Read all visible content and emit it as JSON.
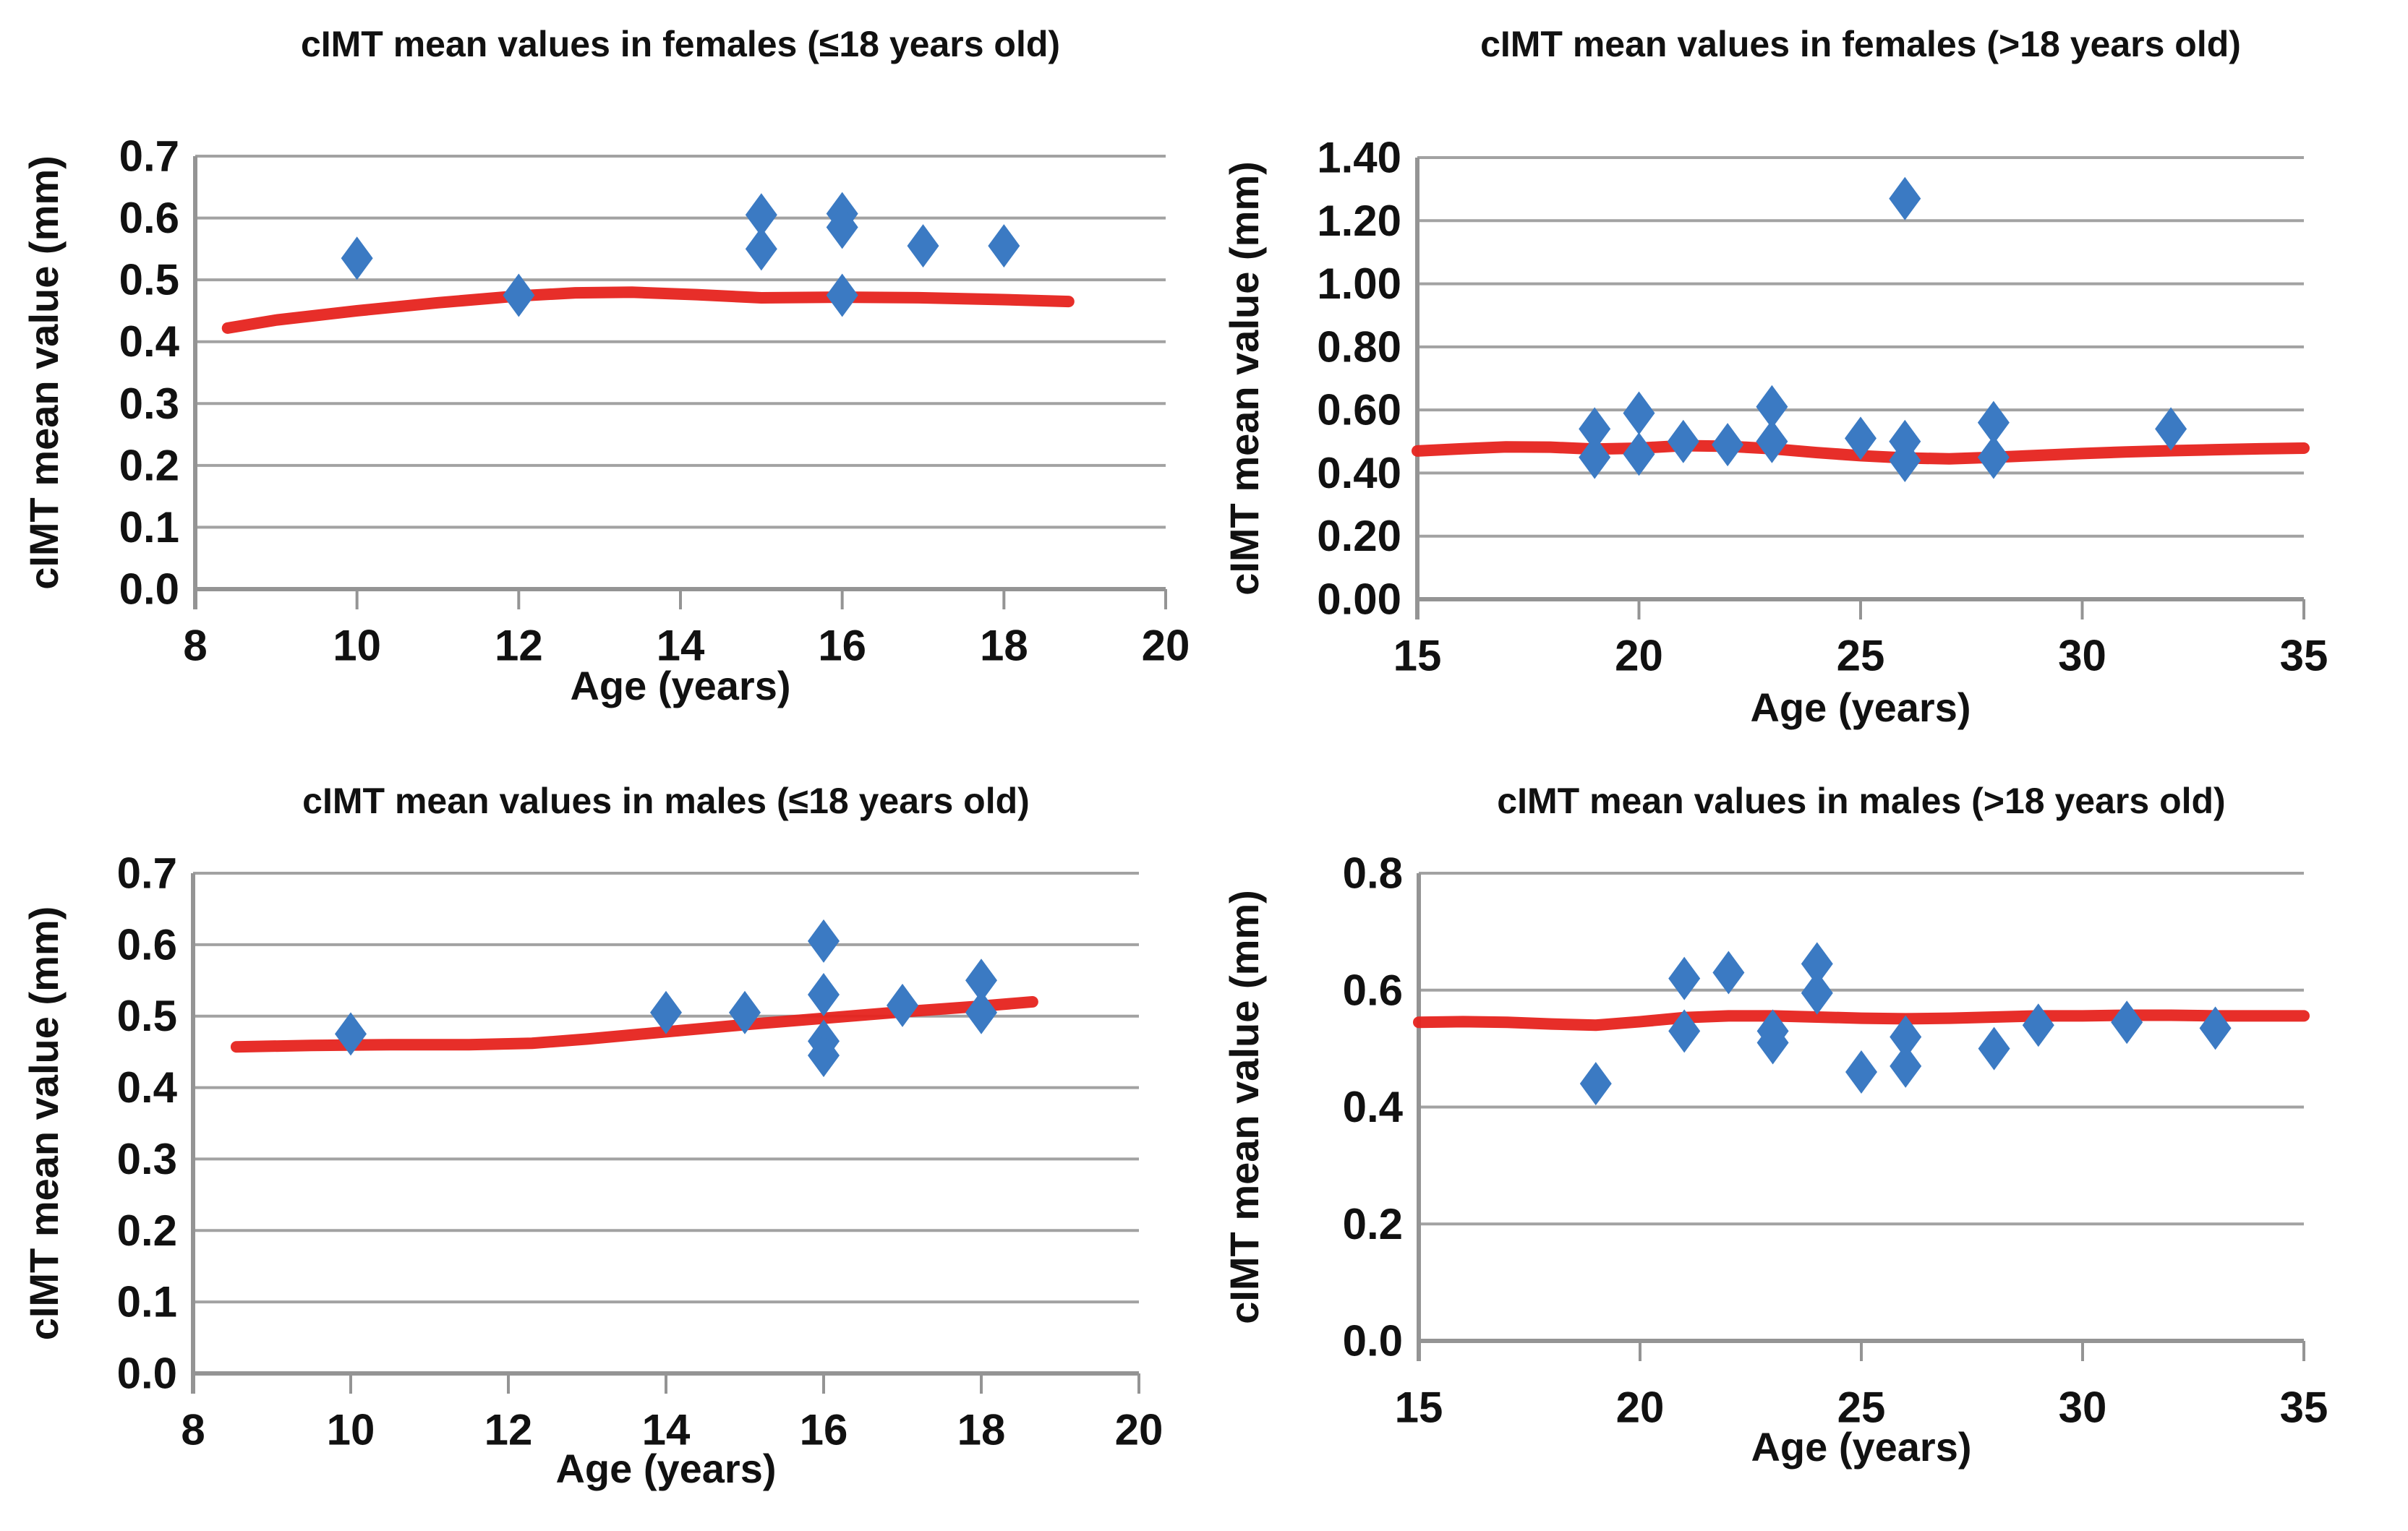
{
  "figure": {
    "background": "#ffffff",
    "description": "Four scatter plots of cIMT mean values versus age, by sex and age group, each with a red trend line"
  },
  "colors": {
    "marker": "#3b7ac3",
    "trend_line": "#e6231e",
    "gridline": "#a2a2a2",
    "axis": "#949494",
    "text": "#111111"
  },
  "chart_data": [
    {
      "type": "scatter",
      "title": "cIMT mean values in females (≤18 years old)",
      "xlabel": "Age (years)",
      "ylabel": "cIMT mean value (mm)",
      "xlim": [
        8,
        20
      ],
      "xticks": [
        8,
        10,
        12,
        14,
        16,
        18,
        20
      ],
      "ylim": [
        0,
        0.7
      ],
      "yticks": [
        0,
        0.1,
        0.2,
        0.3,
        0.4,
        0.5,
        0.6,
        0.7
      ],
      "ytick_labels": [
        "0.0",
        "0.1",
        "0.2",
        "0.3",
        "0.4",
        "0.5",
        "0.6",
        "0.7"
      ],
      "grid": true,
      "legend": "none",
      "marker": "diamond",
      "points": [
        [
          10,
          0.535
        ],
        [
          12,
          0.475
        ],
        [
          15,
          0.605
        ],
        [
          15,
          0.55
        ],
        [
          16,
          0.607
        ],
        [
          16,
          0.585
        ],
        [
          16,
          0.475
        ],
        [
          17,
          0.555
        ],
        [
          18,
          0.555
        ]
      ],
      "trend": [
        [
          8.4,
          0.422
        ],
        [
          9,
          0.435
        ],
        [
          10,
          0.45
        ],
        [
          11,
          0.463
        ],
        [
          12,
          0.474
        ],
        [
          12.7,
          0.479
        ],
        [
          13.4,
          0.48
        ],
        [
          14.2,
          0.476
        ],
        [
          15,
          0.471
        ],
        [
          16,
          0.472
        ],
        [
          17,
          0.471
        ],
        [
          18,
          0.468
        ],
        [
          18.8,
          0.465
        ]
      ]
    },
    {
      "type": "scatter",
      "title": "cIMT mean values in females (>18 years old)",
      "xlabel": "Age (years)",
      "ylabel": "cIMT mean value (mm)",
      "xlim": [
        15,
        35
      ],
      "xticks": [
        15,
        20,
        25,
        30,
        35
      ],
      "ylim": [
        0,
        1.4
      ],
      "yticks": [
        0,
        0.2,
        0.4,
        0.6,
        0.8,
        1.0,
        1.2,
        1.4
      ],
      "ytick_labels": [
        "0.00",
        "0.20",
        "0.40",
        "0.60",
        "0.80",
        "1.00",
        "1.20",
        "1.40"
      ],
      "grid": true,
      "legend": "none",
      "marker": "diamond",
      "points": [
        [
          19,
          0.54
        ],
        [
          19,
          0.45
        ],
        [
          20,
          0.59
        ],
        [
          20,
          0.46
        ],
        [
          21,
          0.5
        ],
        [
          22,
          0.49
        ],
        [
          23,
          0.61
        ],
        [
          23,
          0.5
        ],
        [
          25,
          0.51
        ],
        [
          26,
          1.27
        ],
        [
          26,
          0.5
        ],
        [
          26,
          0.44
        ],
        [
          28,
          0.56
        ],
        [
          28,
          0.45
        ],
        [
          32,
          0.54
        ]
      ],
      "trend": [
        [
          15,
          0.47
        ],
        [
          16,
          0.477
        ],
        [
          17,
          0.483
        ],
        [
          18,
          0.482
        ],
        [
          19,
          0.476
        ],
        [
          20,
          0.479
        ],
        [
          21,
          0.487
        ],
        [
          22,
          0.485
        ],
        [
          23,
          0.477
        ],
        [
          24,
          0.465
        ],
        [
          25,
          0.455
        ],
        [
          26,
          0.448
        ],
        [
          27,
          0.445
        ],
        [
          28,
          0.45
        ],
        [
          29,
          0.456
        ],
        [
          30,
          0.462
        ],
        [
          31,
          0.467
        ],
        [
          32,
          0.471
        ],
        [
          33,
          0.474
        ],
        [
          34,
          0.477
        ],
        [
          35,
          0.479
        ]
      ]
    },
    {
      "type": "scatter",
      "title": "cIMT mean values in males (≤18 years old)",
      "xlabel": "Age (years)",
      "ylabel": "cIMT mean value (mm)",
      "xlim": [
        8,
        20
      ],
      "xticks": [
        8,
        10,
        12,
        14,
        16,
        18,
        20
      ],
      "ylim": [
        0,
        0.7
      ],
      "yticks": [
        0,
        0.1,
        0.2,
        0.3,
        0.4,
        0.5,
        0.6,
        0.7
      ],
      "ytick_labels": [
        "0.0",
        "0.1",
        "0.2",
        "0.3",
        "0.4",
        "0.5",
        "0.6",
        "0.7"
      ],
      "grid": true,
      "legend": "none",
      "marker": "diamond",
      "points": [
        [
          10,
          0.475
        ],
        [
          14,
          0.505
        ],
        [
          15,
          0.505
        ],
        [
          16,
          0.605
        ],
        [
          16,
          0.53
        ],
        [
          16,
          0.465
        ],
        [
          16,
          0.445
        ],
        [
          17,
          0.515
        ],
        [
          18,
          0.55
        ],
        [
          18,
          0.505
        ]
      ],
      "trend": [
        [
          8.55,
          0.457
        ],
        [
          9.5,
          0.459
        ],
        [
          10.5,
          0.46
        ],
        [
          11.5,
          0.46
        ],
        [
          12.3,
          0.462
        ],
        [
          13,
          0.468
        ],
        [
          14,
          0.478
        ],
        [
          15,
          0.488
        ],
        [
          16,
          0.497
        ],
        [
          17,
          0.506
        ],
        [
          18,
          0.514
        ],
        [
          18.65,
          0.52
        ]
      ]
    },
    {
      "type": "scatter",
      "title": "cIMT mean values in males (>18 years old)",
      "xlabel": "Age (years)",
      "ylabel": "cIMT mean value (mm)",
      "xlim": [
        15,
        35
      ],
      "xticks": [
        15,
        20,
        25,
        30,
        35
      ],
      "ylim": [
        0,
        0.8
      ],
      "yticks": [
        0,
        0.2,
        0.4,
        0.6,
        0.8
      ],
      "ytick_labels": [
        "0.0",
        "0.2",
        "0.4",
        "0.6",
        "0.8"
      ],
      "grid": true,
      "legend": "none",
      "marker": "diamond",
      "points": [
        [
          19,
          0.44
        ],
        [
          21,
          0.62
        ],
        [
          21,
          0.53
        ],
        [
          22,
          0.63
        ],
        [
          23,
          0.53
        ],
        [
          23,
          0.51
        ],
        [
          24,
          0.645
        ],
        [
          24,
          0.595
        ],
        [
          25,
          0.46
        ],
        [
          26,
          0.52
        ],
        [
          26,
          0.47
        ],
        [
          28,
          0.5
        ],
        [
          29,
          0.54
        ],
        [
          31,
          0.545
        ],
        [
          33,
          0.535
        ]
      ],
      "trend": [
        [
          15,
          0.545
        ],
        [
          16,
          0.546
        ],
        [
          17,
          0.545
        ],
        [
          18,
          0.542
        ],
        [
          19,
          0.54
        ],
        [
          20,
          0.546
        ],
        [
          21,
          0.553
        ],
        [
          22,
          0.556
        ],
        [
          23,
          0.556
        ],
        [
          24,
          0.554
        ],
        [
          25,
          0.552
        ],
        [
          26,
          0.551
        ],
        [
          27,
          0.552
        ],
        [
          28,
          0.554
        ],
        [
          29,
          0.556
        ],
        [
          30,
          0.556
        ],
        [
          31,
          0.557
        ],
        [
          32,
          0.557
        ],
        [
          33,
          0.556
        ],
        [
          34,
          0.556
        ],
        [
          35,
          0.556
        ]
      ]
    }
  ]
}
